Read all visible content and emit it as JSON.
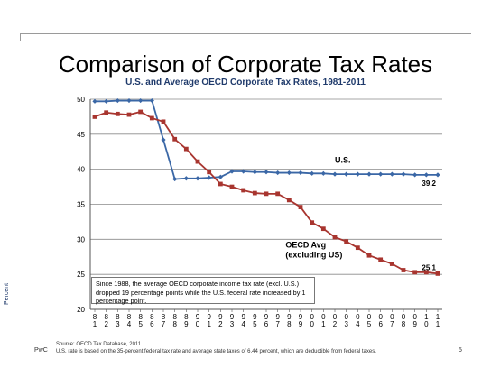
{
  "slide": {
    "title": "Comparison of Corporate Tax Rates",
    "brand": "PwC",
    "page_number": "5",
    "source_line": "Source:  OECD Tax Database, 2011.",
    "footnote": "U.S. rate is based on the 35-percent federal tax rate and average state taxes of  6.44 percent, which are deductible from federal taxes."
  },
  "chart_data": {
    "type": "line",
    "title": "U.S. and Average OECD Corporate Tax Rates, 1981-2011",
    "ylabel": "Percent",
    "ylim": [
      20,
      50
    ],
    "yticks": [
      20,
      25,
      30,
      35,
      40,
      45,
      50
    ],
    "grid": true,
    "x": [
      "1981",
      "1982",
      "1983",
      "1984",
      "1985",
      "1986",
      "1987",
      "1988",
      "1989",
      "1990",
      "1991",
      "1992",
      "1993",
      "1994",
      "1995",
      "1996",
      "1997",
      "1998",
      "1999",
      "2000",
      "2001",
      "2002",
      "2003",
      "2004",
      "2005",
      "2006",
      "2007",
      "2008",
      "2009",
      "2010",
      "2011"
    ],
    "x_tick_labels": [
      "81",
      "82",
      "83",
      "84",
      "85",
      "86",
      "87",
      "88",
      "89",
      "90",
      "91",
      "92",
      "93",
      "94",
      "95",
      "96",
      "97",
      "98",
      "99",
      "00",
      "01",
      "02",
      "03",
      "04",
      "05",
      "06",
      "07",
      "08",
      "09",
      "10",
      "11"
    ],
    "series": [
      {
        "name": "U.S.",
        "color": "#3a67a6",
        "marker": "diamond",
        "values": [
          49.7,
          49.7,
          49.8,
          49.8,
          49.8,
          49.8,
          44.2,
          38.6,
          38.7,
          38.7,
          38.8,
          38.9,
          39.7,
          39.7,
          39.6,
          39.6,
          39.5,
          39.5,
          39.5,
          39.4,
          39.4,
          39.3,
          39.3,
          39.3,
          39.3,
          39.3,
          39.3,
          39.3,
          39.2,
          39.2,
          39.2
        ],
        "end_label": "39.2"
      },
      {
        "name": "OECD Avg (excluding US)",
        "color": "#a8352f",
        "marker": "square",
        "values": [
          47.5,
          48.1,
          47.9,
          47.8,
          48.2,
          47.3,
          46.8,
          44.3,
          42.9,
          41.1,
          39.6,
          37.9,
          37.5,
          37.0,
          36.6,
          36.5,
          36.5,
          35.6,
          34.6,
          32.4,
          31.5,
          30.3,
          29.7,
          28.8,
          27.7,
          27.1,
          26.5,
          25.6,
          25.3,
          25.3,
          25.1
        ],
        "end_label": "25.1"
      }
    ],
    "annotations": [
      "Since 1988, the average OECD corporate income tax rate (excl. U.S.) dropped 19 percentage points while the U.S. federal rate increased by 1 percentage point."
    ]
  }
}
